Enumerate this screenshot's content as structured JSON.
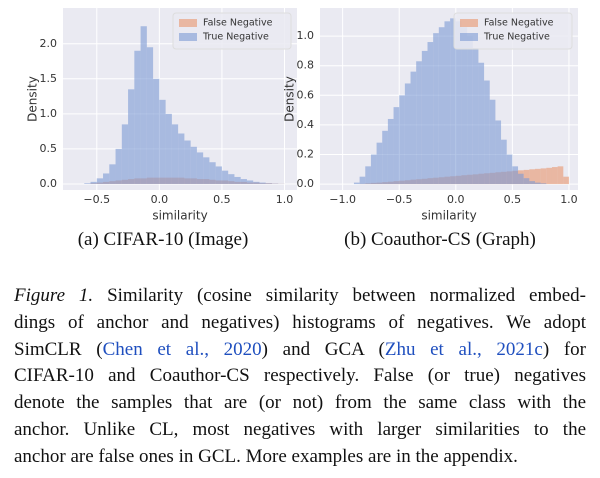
{
  "chart_data": [
    {
      "type": "histogram",
      "subcaption": "(a) CIFAR-10 (Image)",
      "xlabel": "similarity",
      "ylabel": "Density",
      "bins": [
        -0.6,
        -0.55,
        -0.5,
        -0.45,
        -0.4,
        -0.35,
        -0.3,
        -0.25,
        -0.2,
        -0.15,
        -0.1,
        -0.05,
        0,
        0.05,
        0.1,
        0.15,
        0.2,
        0.25,
        0.3,
        0.35,
        0.4,
        0.45,
        0.5,
        0.55,
        0.6,
        0.65,
        0.7,
        0.75,
        0.8,
        0.85,
        0.9,
        0.95,
        1.0
      ],
      "series": [
        {
          "name": "False Negative",
          "color": "#e8956d",
          "values": [
            0,
            0.01,
            0.02,
            0.03,
            0.04,
            0.05,
            0.06,
            0.07,
            0.08,
            0.08,
            0.09,
            0.09,
            0.09,
            0.09,
            0.09,
            0.09,
            0.08,
            0.08,
            0.07,
            0.07,
            0.06,
            0.05,
            0.05,
            0.04,
            0.03,
            0.03,
            0.02,
            0.02,
            0.01,
            0.01,
            0.005,
            0.002
          ]
        },
        {
          "name": "True Negative",
          "color": "#7b9ad4",
          "values": [
            0.01,
            0.03,
            0.08,
            0.15,
            0.28,
            0.5,
            0.85,
            1.35,
            1.9,
            2.25,
            1.95,
            1.5,
            1.2,
            1.0,
            0.85,
            0.72,
            0.62,
            0.53,
            0.45,
            0.38,
            0.31,
            0.25,
            0.19,
            0.14,
            0.1,
            0.07,
            0.05,
            0.03,
            0.02,
            0.01,
            0.005,
            0.002
          ]
        }
      ],
      "xlim": [
        -0.77,
        1.1
      ],
      "ylim": [
        -0.086,
        2.51
      ],
      "xticks": [
        {
          "value": -0.5,
          "label": "−0.5"
        },
        {
          "value": 0,
          "label": "0.0"
        },
        0.5,
        {
          "value": 1,
          "label": "1.0"
        }
      ],
      "yticks": [
        {
          "value": 0,
          "label": "0.0"
        },
        0.5,
        {
          "value": 1,
          "label": "1.0"
        },
        1.5,
        {
          "value": 2,
          "label": "2.0"
        }
      ],
      "grid": true,
      "legend": "upper right"
    },
    {
      "type": "histogram",
      "subcaption": "(b) Coauthor-CS (Graph)",
      "xlabel": "similarity",
      "ylabel": "Density",
      "bins": [
        -1.0,
        -0.95,
        -0.9,
        -0.85,
        -0.8,
        -0.75,
        -0.7,
        -0.65,
        -0.6,
        -0.55,
        -0.5,
        -0.45,
        -0.4,
        -0.35,
        -0.3,
        -0.25,
        -0.2,
        -0.15,
        -0.1,
        -0.05,
        0,
        0.05,
        0.1,
        0.15,
        0.2,
        0.25,
        0.3,
        0.35,
        0.4,
        0.45,
        0.5,
        0.55,
        0.6,
        0.65,
        0.7,
        0.75,
        0.8,
        0.85,
        0.9,
        0.95,
        1.0
      ],
      "series": [
        {
          "name": "False Negative",
          "color": "#e8956d",
          "values": [
            0,
            0,
            0,
            0.002,
            0.005,
            0.008,
            0.01,
            0.013,
            0.016,
            0.02,
            0.023,
            0.026,
            0.03,
            0.033,
            0.036,
            0.04,
            0.043,
            0.046,
            0.05,
            0.053,
            0.056,
            0.06,
            0.063,
            0.066,
            0.07,
            0.073,
            0.076,
            0.08,
            0.083,
            0.086,
            0.09,
            0.093,
            0.096,
            0.1,
            0.103,
            0.106,
            0.11,
            0.115,
            0.12,
            0.05
          ]
        },
        {
          "name": "True Negative",
          "color": "#7b9ad4",
          "values": [
            0,
            0,
            0.01,
            0.05,
            0.12,
            0.2,
            0.28,
            0.36,
            0.44,
            0.52,
            0.6,
            0.68,
            0.76,
            0.83,
            0.9,
            0.96,
            1.02,
            1.06,
            1.1,
            1.12,
            1.1,
            1.06,
            1.0,
            0.92,
            0.82,
            0.7,
            0.57,
            0.43,
            0.3,
            0.2,
            0.12,
            0.07,
            0.04,
            0.02,
            0.01,
            0.005,
            0,
            0,
            0,
            0
          ]
        }
      ],
      "xlim": [
        -1.2,
        1.08
      ],
      "ylim": [
        -0.04,
        1.19
      ],
      "xticks": [
        {
          "value": -1,
          "label": "−1.0"
        },
        {
          "value": -0.5,
          "label": "−0.5"
        },
        {
          "value": 0,
          "label": "0.0"
        },
        0.5,
        {
          "value": 1,
          "label": "1.0"
        }
      ],
      "yticks": [
        {
          "value": 0,
          "label": "0.0"
        },
        0.2,
        0.4,
        0.6,
        0.8,
        {
          "value": 1,
          "label": "1.0"
        }
      ],
      "grid": true,
      "legend": "upper right"
    }
  ],
  "caption": {
    "lines": [
      [
        {
          "text": "Figure 1.",
          "italic": true
        },
        {
          "text": " Similarity (cosine similarity between normalized embed-"
        }
      ],
      [
        {
          "text": "dings of anchor and negatives) histograms of negatives. We adopt"
        }
      ],
      [
        {
          "text": "SimCLR ("
        },
        {
          "text": "Chen et al., 2020",
          "link": true
        },
        {
          "text": ") and GCA ("
        },
        {
          "text": "Zhu et al., 2021c",
          "link": true
        },
        {
          "text": ") for"
        }
      ],
      [
        {
          "text": "CIFAR-10 and Coauthor-CS respectively. False (or true) negatives"
        }
      ],
      [
        {
          "text": "denote the samples that are (or not) from the same class with the"
        }
      ],
      [
        {
          "text": "anchor. Unlike CL, most negatives with larger similarities to the"
        }
      ],
      [
        {
          "text": "anchor are false ones in GCL. More examples are in the appendix."
        }
      ]
    ]
  }
}
